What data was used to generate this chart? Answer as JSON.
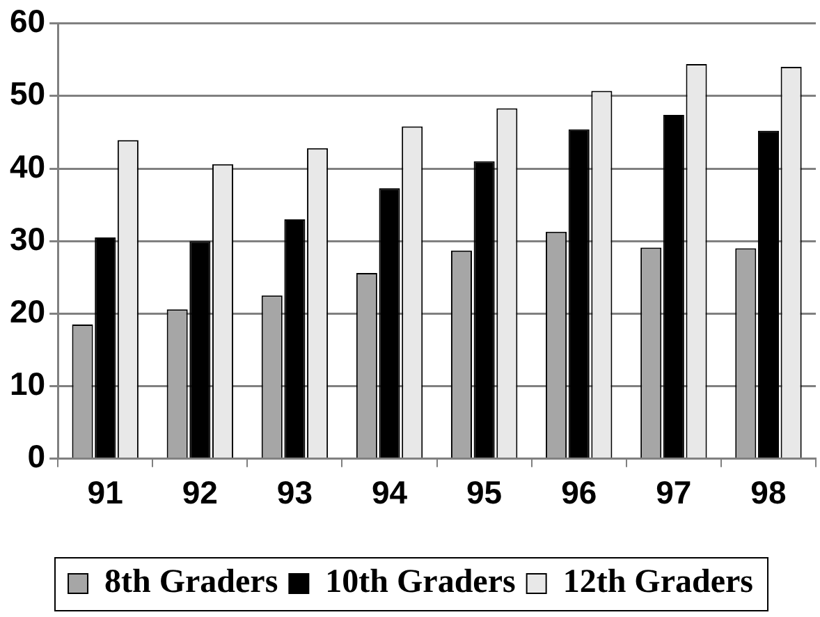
{
  "chart_data": {
    "type": "bar",
    "categories": [
      "91",
      "92",
      "93",
      "94",
      "95",
      "96",
      "97",
      "98"
    ],
    "series": [
      {
        "name": "8th Graders",
        "color": "#a6a6a6",
        "values": [
          18.5,
          20.6,
          22.5,
          25.6,
          28.7,
          31.3,
          29.1,
          29
        ]
      },
      {
        "name": "10th Graders",
        "color": "#000000",
        "values": [
          30.5,
          30,
          33,
          37.3,
          41,
          45.4,
          47.4,
          45.2
        ]
      },
      {
        "name": "12th Graders",
        "color": "#e8e8e8",
        "values": [
          43.9,
          40.6,
          42.8,
          45.8,
          48.3,
          50.7,
          54.4,
          54
        ]
      }
    ],
    "ylim": [
      0,
      60
    ],
    "yticks": [
      0,
      10,
      20,
      30,
      40,
      50,
      60
    ],
    "grid": "y",
    "legend": "bottom"
  }
}
